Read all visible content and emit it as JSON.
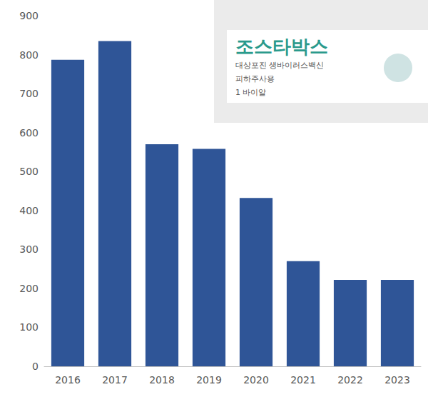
{
  "chart_data": {
    "type": "bar",
    "categories": [
      "2016",
      "2017",
      "2018",
      "2019",
      "2020",
      "2021",
      "2022",
      "2023"
    ],
    "values": [
      787,
      835,
      570,
      558,
      432,
      270,
      222,
      222
    ],
    "color": "#2f5597",
    "ylim": [
      0,
      900
    ],
    "yticks": [
      0,
      100,
      200,
      300,
      400,
      500,
      600,
      700,
      800,
      900
    ],
    "grid": false,
    "annotations": [
      "조스타박스",
      "대상포진 생바이러스백신",
      "피하주사용",
      "1 바이알"
    ]
  }
}
